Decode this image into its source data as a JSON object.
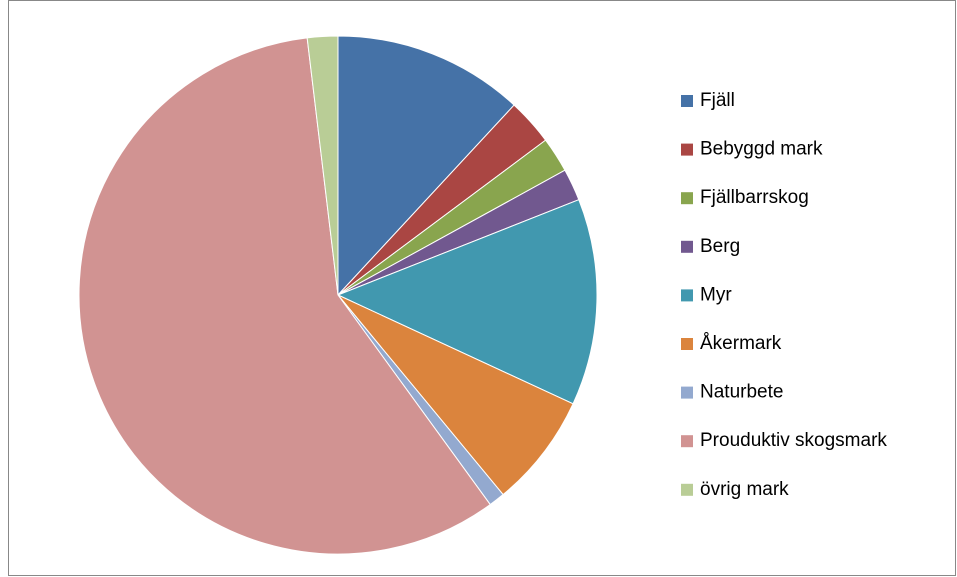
{
  "chart_data": {
    "type": "pie",
    "categories": [
      "Fjäll",
      "Bebyggd mark",
      "Fjällbarrskog",
      "Berg",
      "Myr",
      "Åkermark",
      "Naturbete",
      "Prouduktiv skogsmark",
      "övrig mark"
    ],
    "values": [
      11.9,
      2.9,
      2.2,
      2.0,
      12.9,
      7.1,
      1.0,
      58.1,
      1.9
    ],
    "colors": [
      "#4572a7",
      "#aa4643",
      "#89a54e",
      "#71588f",
      "#4198af",
      "#db843d",
      "#93a9cf",
      "#d19392",
      "#b9cd96"
    ],
    "legend": "right"
  }
}
